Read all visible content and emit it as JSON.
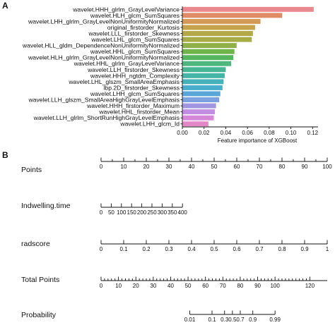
{
  "panels": {
    "a_label": "A",
    "b_label": "B"
  },
  "chart_data": [
    {
      "type": "bar",
      "orientation": "horizontal",
      "title": "",
      "xlabel": "Feature importance of XGBoost",
      "ylabel": "",
      "xlim": [
        0,
        0.125
      ],
      "xticks": [
        0.0,
        0.02,
        0.04,
        0.06,
        0.08,
        0.1,
        0.12
      ],
      "xtick_labels": [
        "0.00",
        "0.02",
        "0.04",
        "0.06",
        "0.08",
        "0.10",
        "0.12"
      ],
      "grid": false,
      "categories": [
        "wavelet.HHH_glrlm_GrayLevelVariance",
        "wavelet.HLH_glcm_SumSquares",
        "wavelet.LHH_glrlm_GrayLevelNonUniformityNormalized",
        "original_firstorder_Kurtosis",
        "wavelet.LLL_firstorder_Skewness",
        "wavelet.LHL_glcm_SumSquares",
        "wavelet.HLL_gldm_DependenceNonUniformityNormalized",
        "wavelet.HHL_glcm_SumSquares",
        "wavelet.HLH_glrlm_GrayLevelNonUniformityNormalized",
        "wavelet.HHL_glrlm_GrayLevelVariance",
        "wavelet.LLH_firstorder_Skewness",
        "wavelet.HHH_ngtdm_Complexity",
        "wavelet.LHL_glszm_SmallAreaEmphasis",
        "lbp.2D_firstorder_Skewness",
        "wavelet.LHH_glcm_SumSquares",
        "wavelet.LLH_glszm_SmallAreaHighGrayLevelEmphasis",
        "wavelet.HHH_firstorder_Maximum",
        "wavelet.HHL_firstorder_Mean",
        "wavelet.LLH_glrlm_ShortRunHighGrayLevelEmphasis",
        "wavelet.LHH_glcm_Id"
      ],
      "values": [
        0.121,
        0.092,
        0.072,
        0.067,
        0.065,
        0.064,
        0.05,
        0.048,
        0.047,
        0.045,
        0.04,
        0.039,
        0.038,
        0.037,
        0.035,
        0.034,
        0.031,
        0.03,
        0.029,
        0.024
      ],
      "colors": [
        "#e9898f",
        "#e08c66",
        "#d49a55",
        "#c6a24a",
        "#b4a746",
        "#a7ac46",
        "#8fb046",
        "#6fb449",
        "#55b65f",
        "#4db77e",
        "#46b594",
        "#44b4a6",
        "#45b1b9",
        "#48aecb",
        "#5aa6d8",
        "#7da0de",
        "#a196e0",
        "#c08de0",
        "#d688d8",
        "#e487c7"
      ]
    },
    {
      "type": "nomogram",
      "title": "",
      "scales": [
        {
          "name": "Points",
          "range": [
            0,
            100
          ],
          "ticks": [
            0,
            10,
            20,
            30,
            40,
            50,
            60,
            70,
            80,
            90,
            100
          ],
          "labels": [
            "0",
            "10",
            "20",
            "30",
            "40",
            "50",
            "60",
            "70",
            "80",
            "90",
            "100"
          ],
          "minor_per_major": 2
        },
        {
          "name": "Indwelling.time",
          "range": [
            0,
            400
          ],
          "ticks": [
            0,
            50,
            100,
            150,
            200,
            250,
            300,
            350,
            400
          ],
          "labels": [
            "0",
            "50",
            "100",
            "150",
            "200",
            "250",
            "300",
            "350",
            "400"
          ],
          "points_span": [
            0,
            36
          ],
          "minor_per_major": 0
        },
        {
          "name": "radscore",
          "range": [
            0,
            1
          ],
          "ticks": [
            0,
            0.1,
            0.2,
            0.3,
            0.4,
            0.5,
            0.6,
            0.7,
            0.8,
            0.9,
            1.0
          ],
          "labels": [
            "0",
            "0.1",
            "0.2",
            "0.3",
            "0.4",
            "0.5",
            "0.6",
            "0.7",
            "0.8",
            "0.9",
            "1"
          ],
          "points_span": [
            0,
            100
          ],
          "minor_per_major": 0
        },
        {
          "name": "Total Points",
          "range": [
            0,
            130
          ],
          "ticks": [
            0,
            10,
            20,
            30,
            40,
            50,
            60,
            70,
            80,
            90,
            100,
            120
          ],
          "labels": [
            "0",
            "10",
            "20",
            "30",
            "40",
            "50",
            "60",
            "70",
            "80",
            "90",
            "100",
            "120"
          ],
          "minor_per_major": 5
        },
        {
          "name": "Probability",
          "ticks": [
            0.01,
            0.1,
            0.3,
            0.5,
            0.7,
            0.9,
            0.99
          ],
          "labels": [
            "0.01",
            "0.1",
            "0.3",
            "0.5",
            "0.7",
            "0.9",
            "0.99"
          ],
          "total_points_span": [
            51,
            100
          ]
        }
      ]
    }
  ]
}
